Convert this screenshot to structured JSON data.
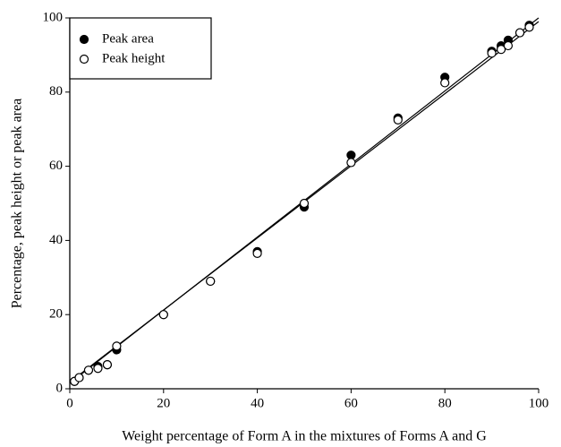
{
  "chart_data": {
    "type": "scatter",
    "xlabel": "Weight percentage of Form A in the mixtures of Forms A and G",
    "ylabel": "Percentage, peak height or peak area",
    "xlim": [
      0,
      100
    ],
    "ylim": [
      0,
      100
    ],
    "xticks": [
      0,
      20,
      40,
      60,
      80,
      100
    ],
    "yticks": [
      0,
      20,
      40,
      60,
      80,
      100
    ],
    "grid": false,
    "legend": "upper left",
    "series": [
      {
        "name": "Peak area",
        "color": "#000000",
        "marker_fill": "#000000",
        "x": [
          1,
          2,
          4,
          6,
          8,
          10,
          20,
          30,
          40,
          50,
          60,
          70,
          80,
          90,
          92,
          93.5,
          96,
          98
        ],
        "values": [
          2,
          3,
          5,
          6,
          6.5,
          10.5,
          20,
          29,
          37,
          49,
          63,
          73,
          84,
          91,
          92.5,
          94,
          96,
          98
        ],
        "trendline": {
          "x": [
            0,
            100
          ],
          "y": [
            1.5,
            100
          ]
        }
      },
      {
        "name": "Peak height",
        "color": "#000000",
        "marker_fill": "#ffffff",
        "x": [
          1,
          2,
          4,
          6,
          8,
          10,
          20,
          30,
          40,
          50,
          60,
          70,
          80,
          90,
          92,
          93.5,
          96,
          98
        ],
        "values": [
          2,
          3,
          5,
          5.5,
          6.5,
          11.5,
          20,
          29,
          36.5,
          50,
          61,
          72.5,
          82.5,
          90.5,
          91.5,
          92.5,
          96,
          97.5
        ],
        "trendline": {
          "x": [
            0,
            100
          ],
          "y": [
            1.8,
            99
          ]
        }
      }
    ]
  }
}
